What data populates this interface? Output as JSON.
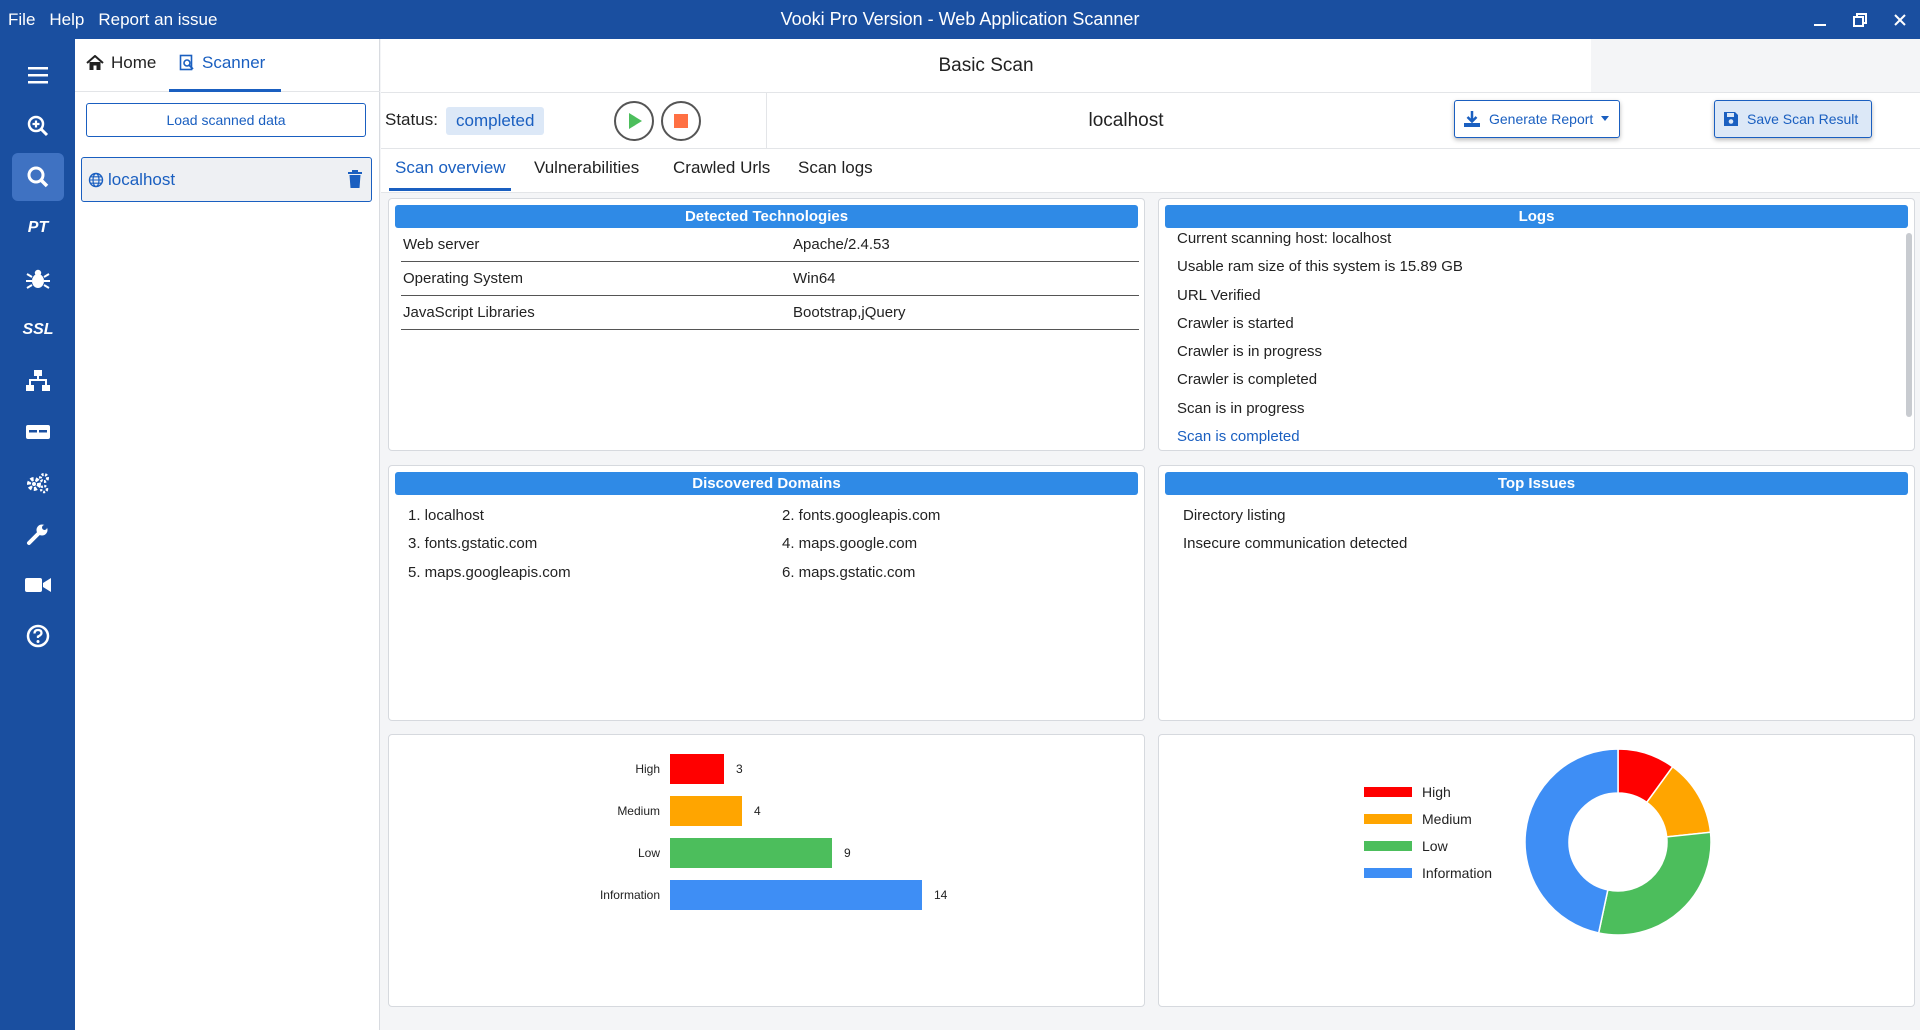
{
  "titlebar": {
    "menu": [
      "File",
      "Help",
      "Report an issue"
    ],
    "title": "Vooki Pro Version - Web Application Scanner"
  },
  "rail": {
    "items": [
      {
        "name": "menu",
        "icon": "hamburger-icon"
      },
      {
        "name": "zoom",
        "icon": "zoom-in-icon"
      },
      {
        "name": "scanner",
        "icon": "search-icon",
        "active": true
      },
      {
        "name": "pt",
        "text": "PT"
      },
      {
        "name": "bug",
        "icon": "bug-icon"
      },
      {
        "name": "ssl",
        "text": "SSL"
      },
      {
        "name": "network",
        "icon": "network-icon"
      },
      {
        "name": "card",
        "icon": "card-icon"
      },
      {
        "name": "settings",
        "icon": "gears-icon"
      },
      {
        "name": "tools",
        "icon": "wrench-icon"
      },
      {
        "name": "video",
        "icon": "video-camera-icon"
      },
      {
        "name": "help",
        "icon": "question-circle-icon"
      }
    ]
  },
  "leftpanel": {
    "home_label": "Home",
    "scanner_label": "Scanner",
    "load_button": "Load scanned data",
    "host_item": "localhost"
  },
  "main": {
    "page_title": "Basic Scan",
    "status_label": "Status:",
    "status_value": "completed",
    "host": "localhost",
    "generate_report": "Generate Report",
    "save_scan": "Save Scan Result",
    "tabs": [
      "Scan overview",
      "Vulnerabilities",
      "Crawled Urls",
      "Scan logs"
    ]
  },
  "technologies": {
    "title": "Detected Technologies",
    "rows": [
      {
        "name": "Web server",
        "value": "Apache/2.4.53"
      },
      {
        "name": "Operating System",
        "value": "Win64"
      },
      {
        "name": "JavaScript Libraries",
        "value": "Bootstrap,jQuery"
      }
    ]
  },
  "logs": {
    "title": "Logs",
    "lines": [
      "Current scanning host: localhost",
      "Usable ram size of this system is 15.89 GB",
      "URL Verified",
      "Crawler is started",
      "Crawler is in progress",
      "Crawler is completed",
      "Scan is in progress",
      "Scan is completed"
    ]
  },
  "domains": {
    "title": "Discovered Domains",
    "items": [
      "1. localhost",
      "2. fonts.googleapis.com",
      "3. fonts.gstatic.com",
      "4. maps.google.com",
      "5. maps.googleapis.com",
      "6. maps.gstatic.com"
    ]
  },
  "top_issues": {
    "title": "Top Issues",
    "items": [
      "Directory listing",
      "Insecure communication detected"
    ]
  },
  "colors": {
    "high": "#ff0000",
    "medium": "#ffa500",
    "low": "#4cbe5c",
    "information": "#3e8ef5",
    "accent": "#1a5fc0"
  },
  "chart_data": [
    {
      "type": "bar",
      "orientation": "horizontal",
      "categories": [
        "High",
        "Medium",
        "Low",
        "Information"
      ],
      "values": [
        3,
        4,
        9,
        14
      ],
      "colors": [
        "#ff0000",
        "#ffa500",
        "#4cbe5c",
        "#3e8ef5"
      ],
      "data_labels": true
    },
    {
      "type": "pie",
      "donut": true,
      "labels": [
        "High",
        "Medium",
        "Low",
        "Information"
      ],
      "values": [
        3,
        4,
        9,
        14
      ],
      "colors": [
        "#ff0000",
        "#ffa500",
        "#4cbe5c",
        "#3e8ef5"
      ],
      "legend": "left"
    }
  ]
}
